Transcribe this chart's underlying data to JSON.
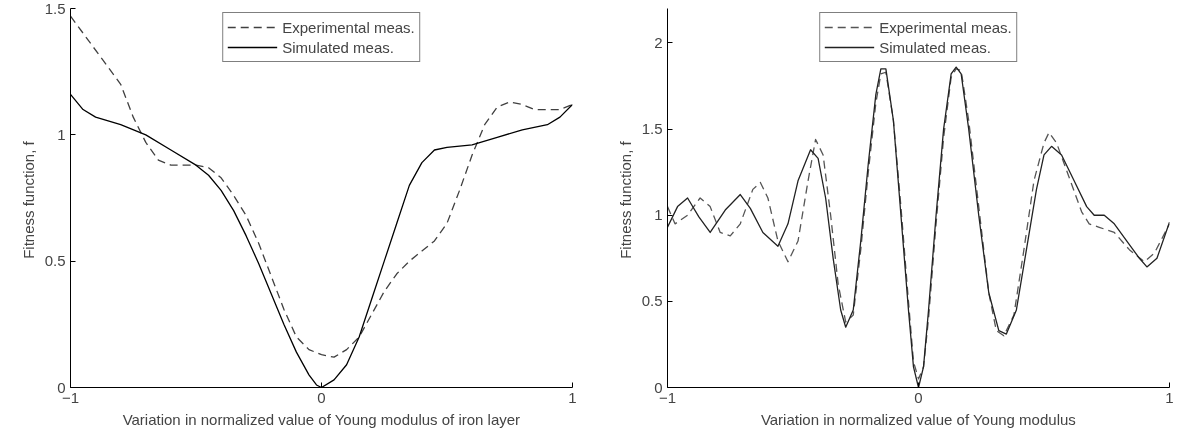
{
  "chart_data": [
    {
      "type": "line",
      "xlabel": "Variation in normalized value of Young modulus of iron layer",
      "ylabel": "Fitness function,  f",
      "xlim": [
        -1,
        1
      ],
      "ylim": [
        0,
        1.5
      ],
      "xticks": [
        {
          "value": -1,
          "label": "−1"
        },
        0,
        1
      ],
      "yticks": [
        0,
        0.5,
        1,
        1.5
      ],
      "grid": false,
      "legend": "top",
      "marker": "none",
      "series": [
        {
          "name": "Experimental meas.",
          "color": "#404040",
          "line_style": "dashed",
          "x": [
            -1,
            -0.8,
            -0.75,
            -0.7,
            -0.65,
            -0.6,
            -0.5,
            -0.45,
            -0.4,
            -0.35,
            -0.3,
            -0.25,
            -0.2,
            -0.15,
            -0.1,
            -0.05,
            0,
            0.05,
            0.1,
            0.15,
            0.2,
            0.25,
            0.3,
            0.35,
            0.4,
            0.45,
            0.5,
            0.55,
            0.6,
            0.65,
            0.7,
            0.75,
            0.8,
            0.85,
            0.9,
            0.95,
            1
          ],
          "values": [
            1.47,
            1.2,
            1.07,
            0.97,
            0.9,
            0.88,
            0.88,
            0.87,
            0.83,
            0.76,
            0.68,
            0.57,
            0.44,
            0.31,
            0.2,
            0.15,
            0.13,
            0.12,
            0.15,
            0.2,
            0.29,
            0.38,
            0.45,
            0.5,
            0.54,
            0.58,
            0.65,
            0.78,
            0.92,
            1.04,
            1.11,
            1.13,
            1.12,
            1.1,
            1.1,
            1.1,
            1.12
          ]
        },
        {
          "name": "Simulated meas.",
          "color": "#000000",
          "line_style": "solid",
          "x": [
            -1,
            -0.95,
            -0.9,
            -0.8,
            -0.7,
            -0.6,
            -0.5,
            -0.45,
            -0.4,
            -0.35,
            -0.3,
            -0.25,
            -0.2,
            -0.15,
            -0.1,
            -0.05,
            -0.02,
            0,
            0.05,
            0.1,
            0.15,
            0.2,
            0.25,
            0.3,
            0.35,
            0.4,
            0.45,
            0.5,
            0.6,
            0.7,
            0.8,
            0.9,
            0.95,
            1
          ],
          "values": [
            1.16,
            1.1,
            1.07,
            1.04,
            1.0,
            0.94,
            0.88,
            0.84,
            0.78,
            0.7,
            0.6,
            0.49,
            0.37,
            0.25,
            0.14,
            0.05,
            0.01,
            0,
            0.03,
            0.09,
            0.2,
            0.35,
            0.5,
            0.65,
            0.8,
            0.89,
            0.94,
            0.95,
            0.96,
            0.99,
            1.02,
            1.04,
            1.07,
            1.12
          ]
        }
      ]
    },
    {
      "type": "line",
      "xlabel": "Variation in normalized value of Young modulus",
      "ylabel": "Fitness function,  f",
      "xlim": [
        -1,
        1
      ],
      "ylim": [
        0,
        2.2
      ],
      "xticks": [
        {
          "value": -1,
          "label": "−1"
        },
        0,
        1
      ],
      "yticks": [
        0,
        0.5,
        1,
        1.5,
        2
      ],
      "grid": false,
      "legend": "top",
      "marker": "none",
      "series": [
        {
          "name": "Experimental meas.",
          "color": "#555555",
          "line_style": "dashed",
          "x": [
            -1,
            -0.97,
            -0.92,
            -0.87,
            -0.83,
            -0.79,
            -0.75,
            -0.71,
            -0.66,
            -0.63,
            -0.6,
            -0.56,
            -0.52,
            -0.48,
            -0.44,
            -0.41,
            -0.38,
            -0.35,
            -0.32,
            -0.29,
            -0.26,
            -0.23,
            -0.2,
            -0.17,
            -0.15,
            -0.13,
            -0.1,
            -0.07,
            -0.04,
            -0.02,
            0,
            0.02,
            0.04,
            0.07,
            0.1,
            0.13,
            0.15,
            0.17,
            0.2,
            0.24,
            0.28,
            0.31,
            0.34,
            0.38,
            0.42,
            0.46,
            0.5,
            0.52,
            0.55,
            0.6,
            0.65,
            0.68,
            0.72,
            0.78,
            0.84,
            0.9,
            0.94,
            1
          ],
          "values": [
            1.05,
            0.95,
            1.0,
            1.1,
            1.05,
            0.9,
            0.88,
            0.95,
            1.15,
            1.19,
            1.1,
            0.85,
            0.73,
            0.85,
            1.2,
            1.44,
            1.35,
            1.0,
            0.6,
            0.38,
            0.42,
            0.8,
            1.25,
            1.65,
            1.82,
            1.83,
            1.55,
            1.05,
            0.5,
            0.15,
            0.05,
            0.12,
            0.4,
            0.95,
            1.45,
            1.8,
            1.85,
            1.84,
            1.55,
            1.05,
            0.55,
            0.33,
            0.3,
            0.42,
            0.8,
            1.2,
            1.42,
            1.48,
            1.42,
            1.22,
            1.02,
            0.95,
            0.93,
            0.9,
            0.8,
            0.73,
            0.78,
            0.95
          ]
        },
        {
          "name": "Simulated meas.",
          "color": "#222222",
          "line_style": "solid",
          "x": [
            -1,
            -0.96,
            -0.92,
            -0.875,
            -0.83,
            -0.77,
            -0.71,
            -0.67,
            -0.62,
            -0.56,
            -0.52,
            -0.48,
            -0.43,
            -0.4,
            -0.37,
            -0.34,
            -0.31,
            -0.29,
            -0.26,
            -0.23,
            -0.2,
            -0.17,
            -0.15,
            -0.13,
            -0.1,
            -0.07,
            -0.04,
            -0.02,
            0,
            0.02,
            0.04,
            0.07,
            0.1,
            0.13,
            0.15,
            0.17,
            0.2,
            0.24,
            0.28,
            0.32,
            0.35,
            0.39,
            0.43,
            0.47,
            0.5,
            0.53,
            0.57,
            0.62,
            0.67,
            0.7,
            0.74,
            0.78,
            0.83,
            0.88,
            0.91,
            0.95,
            1
          ],
          "values": [
            0.93,
            1.05,
            1.1,
            0.99,
            0.9,
            1.03,
            1.12,
            1.04,
            0.9,
            0.82,
            0.95,
            1.2,
            1.38,
            1.33,
            1.1,
            0.75,
            0.45,
            0.35,
            0.45,
            0.85,
            1.3,
            1.7,
            1.85,
            1.85,
            1.55,
            1.0,
            0.45,
            0.12,
            0,
            0.12,
            0.45,
            1.0,
            1.5,
            1.82,
            1.86,
            1.82,
            1.5,
            1.0,
            0.55,
            0.33,
            0.31,
            0.45,
            0.8,
            1.15,
            1.35,
            1.4,
            1.35,
            1.2,
            1.05,
            1.0,
            1.0,
            0.95,
            0.85,
            0.75,
            0.7,
            0.75,
            0.96
          ]
        }
      ]
    }
  ]
}
